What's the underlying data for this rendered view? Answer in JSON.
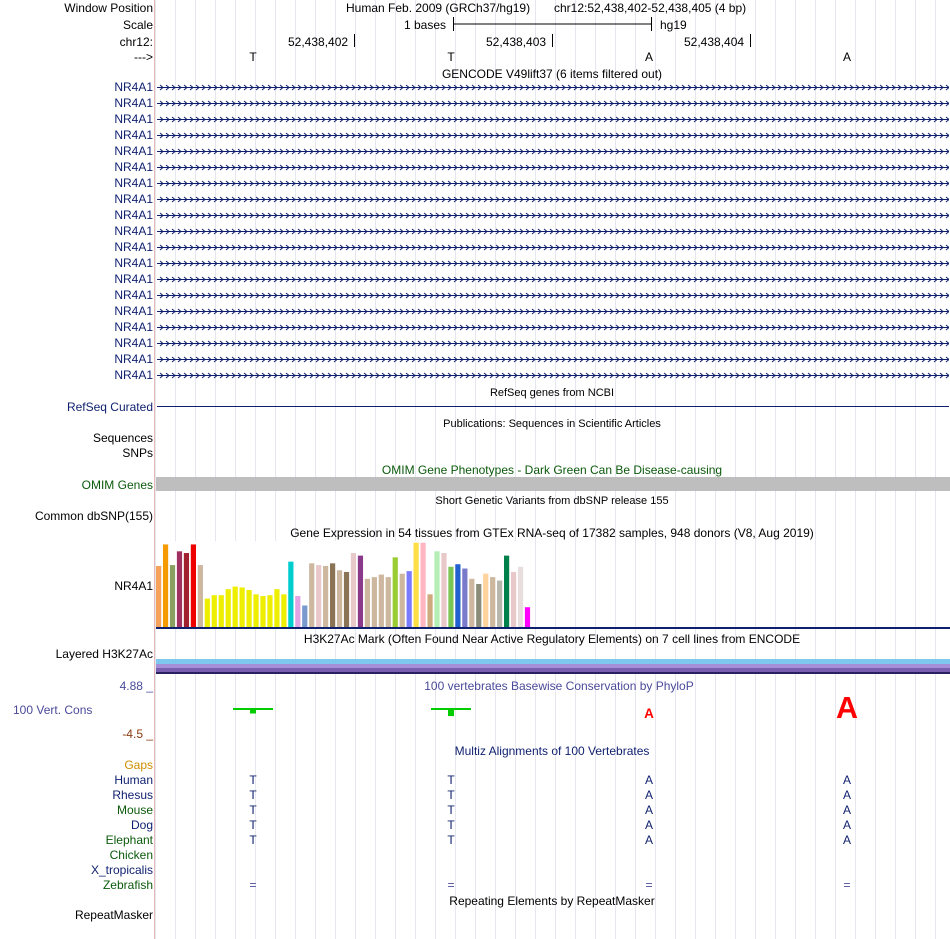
{
  "header": {
    "window_position_label": "Window Position",
    "assembly": "Human Feb. 2009 (GRCh37/hg19)",
    "position": "chr12:52,438,402-52,438,405 (4 bp)",
    "scale_label": "Scale",
    "scale_value": "1 bases",
    "scale_db": "hg19",
    "chrom_label": "chr12:",
    "coords": [
      "52,438,402",
      "52,438,403",
      "52,438,404"
    ],
    "strand_label": "--->",
    "bases": [
      "T",
      "T",
      "A",
      "A"
    ]
  },
  "gencode": {
    "title": "GENCODE V49lift37 (6 items filtered out)",
    "rows": [
      "NR4A1",
      "NR4A1",
      "NR4A1",
      "NR4A1",
      "NR4A1",
      "NR4A1",
      "NR4A1",
      "NR4A1",
      "NR4A1",
      "NR4A1",
      "NR4A1",
      "NR4A1",
      "NR4A1",
      "NR4A1",
      "NR4A1",
      "NR4A1",
      "NR4A1",
      "NR4A1",
      "NR4A1"
    ]
  },
  "refseq": {
    "title": "RefSeq genes from NCBI",
    "label": "RefSeq Curated"
  },
  "publications": {
    "title": "Publications: Sequences in Scientific Articles",
    "label1": "Sequences",
    "label2": "SNPs"
  },
  "omim": {
    "title": "OMIM Gene Phenotypes - Dark Green Can Be Disease-causing",
    "label": "OMIM Genes"
  },
  "dbsnp": {
    "title": "Short Genetic Variants from dbSNP release 155",
    "label": "Common dbSNP(155)"
  },
  "gtex": {
    "title": "Gene Expression in 54 tissues from GTEx RNA-seq of 17382 samples, 948 donors (V8, Aug 2019)",
    "label": "NR4A1",
    "bars": [
      {
        "v": 0.71,
        "c": "#f6a25a"
      },
      {
        "v": 0.96,
        "c": "#f59a00"
      },
      {
        "v": 0.72,
        "c": "#8aa060"
      },
      {
        "v": 0.88,
        "c": "#a03060"
      },
      {
        "v": 0.86,
        "c": "#a02030"
      },
      {
        "v": 0.96,
        "c": "#ee0000"
      },
      {
        "v": 0.72,
        "c": "#cdb79e"
      },
      {
        "v": 0.33,
        "c": "#eeee00"
      },
      {
        "v": 0.37,
        "c": "#eeee00"
      },
      {
        "v": 0.37,
        "c": "#eeee00"
      },
      {
        "v": 0.44,
        "c": "#eeee00"
      },
      {
        "v": 0.47,
        "c": "#eeee00"
      },
      {
        "v": 0.46,
        "c": "#eeee00"
      },
      {
        "v": 0.43,
        "c": "#eeee00"
      },
      {
        "v": 0.38,
        "c": "#eeee00"
      },
      {
        "v": 0.36,
        "c": "#eeee00"
      },
      {
        "v": 0.37,
        "c": "#eeee00"
      },
      {
        "v": 0.44,
        "c": "#eeee00"
      },
      {
        "v": 0.38,
        "c": "#eeee00"
      },
      {
        "v": 0.76,
        "c": "#00cdcd"
      },
      {
        "v": 0.36,
        "c": "#e2a4e2"
      },
      {
        "v": 0.25,
        "c": "#7a9acd"
      },
      {
        "v": 0.74,
        "c": "#cdb79e"
      },
      {
        "v": 0.72,
        "c": "#e8c8c8"
      },
      {
        "v": 0.71,
        "c": "#cdb79e"
      },
      {
        "v": 0.74,
        "c": "#8b7355"
      },
      {
        "v": 0.66,
        "c": "#cdb79e"
      },
      {
        "v": 0.64,
        "c": "#8b7355"
      },
      {
        "v": 0.86,
        "c": "#e8c8c8"
      },
      {
        "v": 0.83,
        "c": "#8b3a8b"
      },
      {
        "v": 0.56,
        "c": "#cdb79e"
      },
      {
        "v": 0.58,
        "c": "#cdb79e"
      },
      {
        "v": 0.61,
        "c": "#cdb79e"
      },
      {
        "v": 0.58,
        "c": "#cdb79e"
      },
      {
        "v": 0.81,
        "c": "#9acd32"
      },
      {
        "v": 0.62,
        "c": "#cdb79e"
      },
      {
        "v": 0.65,
        "c": "#7a7aff"
      },
      {
        "v": 0.98,
        "c": "#ffdd44"
      },
      {
        "v": 0.98,
        "c": "#ffb6c1"
      },
      {
        "v": 0.38,
        "c": "#cdaa7d"
      },
      {
        "v": 0.88,
        "c": "#b4eeb4"
      },
      {
        "v": 0.86,
        "c": "#e8c8c8"
      },
      {
        "v": 0.7,
        "c": "#7ac554"
      },
      {
        "v": 0.73,
        "c": "#2060d0"
      },
      {
        "v": 0.68,
        "c": "#7a7acd"
      },
      {
        "v": 0.56,
        "c": "#cdb79e"
      },
      {
        "v": 0.5,
        "c": "#8b8b7a"
      },
      {
        "v": 0.62,
        "c": "#ffd39b"
      },
      {
        "v": 0.58,
        "c": "#cdb79e"
      },
      {
        "v": 0.54,
        "c": "#b7b7ad"
      },
      {
        "v": 0.83,
        "c": "#00804a"
      },
      {
        "v": 0.64,
        "c": "#e8c8c8"
      },
      {
        "v": 0.7,
        "c": "#e8dede"
      },
      {
        "v": 0.23,
        "c": "#ff00ff"
      }
    ]
  },
  "h3k27ac": {
    "title": "H3K27Ac Mark (Often Found Near Active Regulatory Elements) on 7 cell lines from ENCODE",
    "label": "Layered H3K27Ac",
    "layers": [
      "#7ec8f0",
      "#a58fd8",
      "#7a5fb0",
      "#2c2060"
    ]
  },
  "phylop": {
    "title": "100 vertebrates Basewise Conservation by PhyloP",
    "label": "100 Vert. Cons",
    "max": "4.88 _",
    "min": "-4.5 _",
    "positive_color": "#00cc00",
    "negative_color": "#ff0000",
    "scores": [
      0.75,
      2.04,
      -1.35,
      -3.05
    ]
  },
  "multiz": {
    "title": "Multiz Alignments of 100 Vertebrates",
    "gaps_label": "Gaps",
    "species": [
      {
        "name": "Human",
        "bases": [
          "T",
          "T",
          "A",
          "A"
        ]
      },
      {
        "name": "Rhesus",
        "bases": [
          "T",
          "T",
          "A",
          "A"
        ]
      },
      {
        "name": "Mouse",
        "bases": [
          "T",
          "T",
          "A",
          "A"
        ]
      },
      {
        "name": "Dog",
        "bases": [
          "T",
          "T",
          "A",
          "A"
        ]
      },
      {
        "name": "Elephant",
        "bases": [
          "T",
          "T",
          "A",
          "A"
        ]
      },
      {
        "name": "Chicken",
        "bases": [
          "",
          "",
          "",
          ""
        ]
      },
      {
        "name": "X_tropicalis",
        "bases": [
          "",
          "",
          "",
          ""
        ]
      },
      {
        "name": "Zebrafish",
        "bases": [
          "=",
          "=",
          "=",
          "="
        ]
      }
    ]
  },
  "repeatmasker": {
    "title": "Repeating Elements by RepeatMasker",
    "label": "RepeatMasker"
  }
}
